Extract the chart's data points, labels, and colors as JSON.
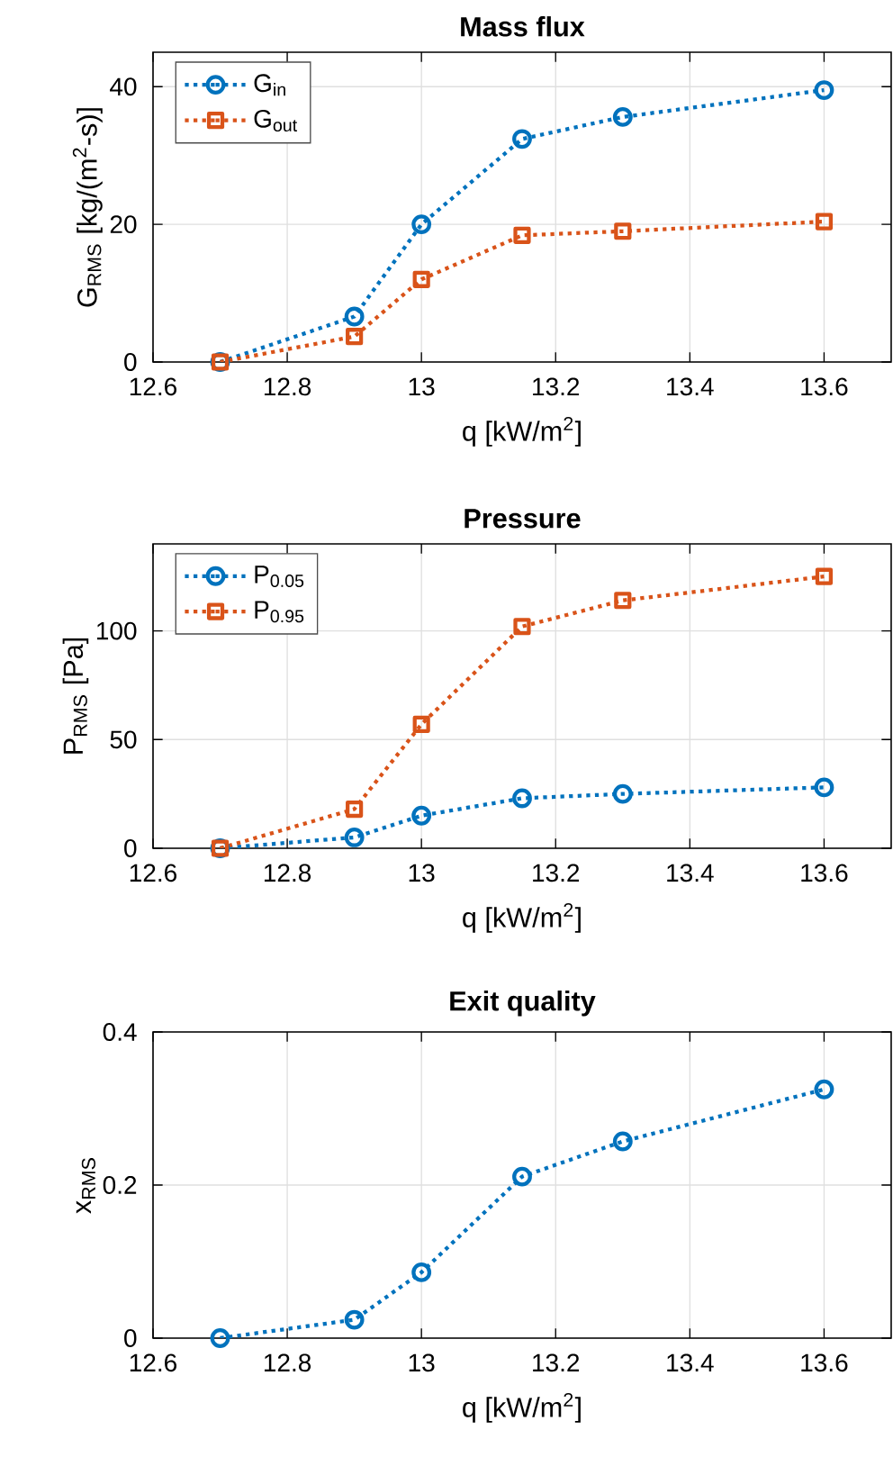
{
  "chart_data": [
    {
      "type": "line",
      "title": "Mass flux",
      "xlabel": "q [kW/m$^{2}$]",
      "ylabel": "G$_{RMS}$ [kg/(m$^{2}$-s)]",
      "x": [
        12.7,
        12.9,
        13,
        13.15,
        13.3,
        13.6
      ],
      "xlim": [
        12.6,
        13.7
      ],
      "xticks": [
        12.6,
        12.8,
        13,
        13.2,
        13.4,
        13.6
      ],
      "ylim": [
        0,
        45
      ],
      "yticks": [
        0,
        20,
        40
      ],
      "grid": true,
      "legend": "top left",
      "line_style": "dotted",
      "series": [
        {
          "name": "G$_{in}$",
          "color": "#0072bd",
          "marker": "circle",
          "values": [
            0,
            6.6,
            20,
            32.4,
            35.6,
            39.5
          ]
        },
        {
          "name": "G$_{out}$",
          "color": "#d95319",
          "marker": "square",
          "values": [
            0,
            3.7,
            12,
            18.4,
            19,
            20.4
          ]
        }
      ]
    },
    {
      "type": "line",
      "title": "Pressure",
      "xlabel": "q [kW/m$^{2}$]",
      "ylabel": "P$_{RMS}$ [Pa]",
      "x": [
        12.7,
        12.9,
        13,
        13.15,
        13.3,
        13.6
      ],
      "xlim": [
        12.6,
        13.7
      ],
      "xticks": [
        12.6,
        12.8,
        13,
        13.2,
        13.4,
        13.6
      ],
      "ylim": [
        0,
        140
      ],
      "yticks": [
        0,
        50,
        100
      ],
      "grid": true,
      "legend": "top left",
      "line_style": "dotted",
      "series": [
        {
          "name": "P$_{0.05}$",
          "color": "#0072bd",
          "marker": "circle",
          "values": [
            0,
            5,
            15,
            23,
            25,
            28
          ]
        },
        {
          "name": "P$_{0.95}$",
          "color": "#d95319",
          "marker": "square",
          "values": [
            0,
            18,
            57,
            102,
            114,
            125
          ]
        }
      ]
    },
    {
      "type": "line",
      "title": "Exit quality",
      "xlabel": "q [kW/m$^{2}$]",
      "ylabel": "x$_{RMS}$",
      "x": [
        12.7,
        12.9,
        13,
        13.15,
        13.3,
        13.6
      ],
      "xlim": [
        12.6,
        13.7
      ],
      "xticks": [
        12.6,
        12.8,
        13,
        13.2,
        13.4,
        13.6
      ],
      "ylim": [
        0,
        0.4
      ],
      "yticks": [
        0,
        0.2,
        0.4
      ],
      "grid": true,
      "line_style": "dotted",
      "marker": "circle",
      "series": [
        {
          "color": "#0072bd",
          "values": [
            0,
            0.024,
            0.086,
            0.211,
            0.257,
            0.325
          ]
        }
      ]
    }
  ]
}
